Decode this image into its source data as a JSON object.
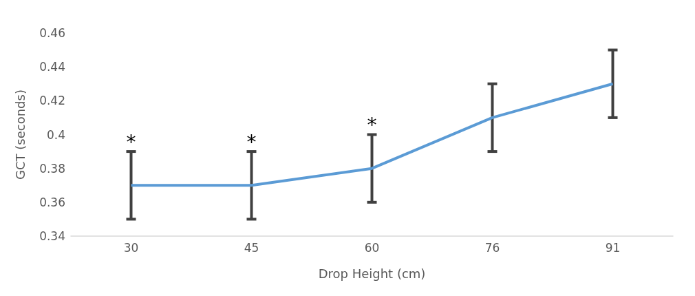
{
  "chart_data": {
    "type": "line",
    "xlabel": "Drop Height (cm)",
    "ylabel": "GCT (seconds)",
    "categories": [
      "30",
      "45",
      "60",
      "76",
      "91"
    ],
    "series": [
      {
        "color": "#5b9bd5",
        "values": [
          0.37,
          0.37,
          0.38,
          0.41,
          0.43
        ],
        "errors": [
          0.02,
          0.02,
          0.02,
          0.02,
          0.02
        ]
      }
    ],
    "ylim": [
      0.34,
      0.46
    ],
    "yticks": [
      0.34,
      0.36,
      0.38,
      0.4,
      0.42,
      0.44,
      0.46
    ],
    "grid": false,
    "marker": "none",
    "line_style": "solid",
    "annotations": [
      {
        "text": "*",
        "x": "30",
        "y": 0.39
      },
      {
        "text": "*",
        "x": "45",
        "y": 0.39
      },
      {
        "text": "*",
        "x": "60",
        "y": 0.4
      }
    ]
  }
}
